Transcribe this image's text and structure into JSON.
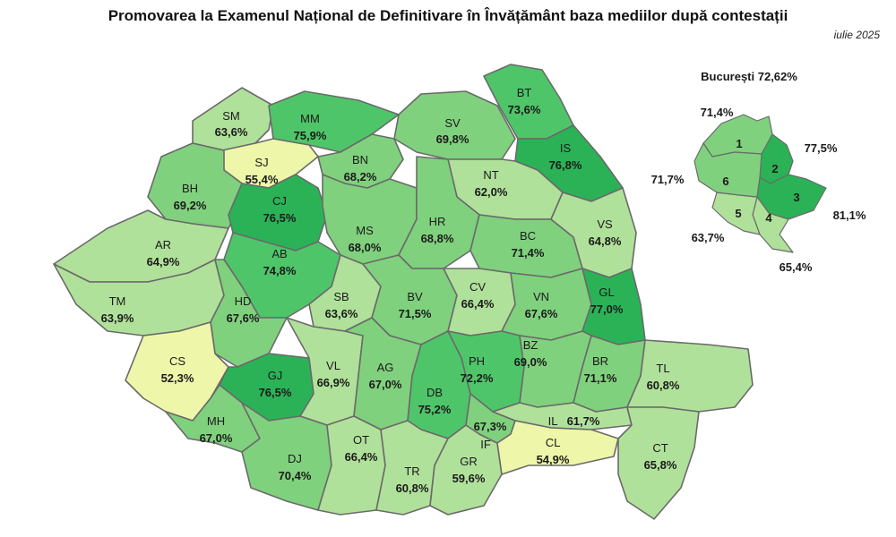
{
  "header": {
    "title": "Promovarea la Examenul Național de Definitivare în Învățământ baza mediilor după contestații",
    "subtitle": "iulie 2025"
  },
  "colors": {
    "very_low": "#eef6a9",
    "low": "#b0e19a",
    "mid": "#80d17e",
    "high": "#4fc56a",
    "top": "#2bb257"
  },
  "counties": [
    {
      "code": "SM",
      "value": "63,6%"
    },
    {
      "code": "MM",
      "value": "75,9%"
    },
    {
      "code": "SV",
      "value": "69,8%"
    },
    {
      "code": "BT",
      "value": "73,6%"
    },
    {
      "code": "SJ",
      "value": "55,4%"
    },
    {
      "code": "BN",
      "value": "68,2%"
    },
    {
      "code": "IS",
      "value": "76,8%"
    },
    {
      "code": "NT",
      "value": "62,0%"
    },
    {
      "code": "BH",
      "value": "69,2%"
    },
    {
      "code": "CJ",
      "value": "76,5%"
    },
    {
      "code": "MS",
      "value": "68,0%"
    },
    {
      "code": "HR",
      "value": "68,8%"
    },
    {
      "code": "BC",
      "value": "71,4%"
    },
    {
      "code": "VS",
      "value": "64,8%"
    },
    {
      "code": "AR",
      "value": "64,9%"
    },
    {
      "code": "AB",
      "value": "74,8%"
    },
    {
      "code": "SB",
      "value": "63,6%"
    },
    {
      "code": "BV",
      "value": "71,5%"
    },
    {
      "code": "CV",
      "value": "66,4%"
    },
    {
      "code": "VN",
      "value": "67,6%"
    },
    {
      "code": "GL",
      "value": "77,0%"
    },
    {
      "code": "TM",
      "value": "63,9%"
    },
    {
      "code": "HD",
      "value": "67,6%"
    },
    {
      "code": "CS",
      "value": "52,3%"
    },
    {
      "code": "GJ",
      "value": "76,5%"
    },
    {
      "code": "VL",
      "value": "66,9%"
    },
    {
      "code": "AG",
      "value": "67,0%"
    },
    {
      "code": "DB",
      "value": "75,2%"
    },
    {
      "code": "PH",
      "value": "72,2%"
    },
    {
      "code": "BZ",
      "value": "69,0%"
    },
    {
      "code": "BR",
      "value": "71,1%"
    },
    {
      "code": "TL",
      "value": "60,8%"
    },
    {
      "code": "MH",
      "value": "67,0%"
    },
    {
      "code": "DJ",
      "value": "70,4%"
    },
    {
      "code": "OT",
      "value": "66,4%"
    },
    {
      "code": "TR",
      "value": "60,8%"
    },
    {
      "code": "GR",
      "value": "59,6%"
    },
    {
      "code": "IF",
      "value": "67,3%"
    },
    {
      "code": "IL",
      "value": "61,7%"
    },
    {
      "code": "CL",
      "value": "54,9%"
    },
    {
      "code": "CT",
      "value": "65,8%"
    }
  ],
  "bucharest": {
    "label": "București 72,62%",
    "sectors": [
      {
        "n": "1",
        "value": "71,4%"
      },
      {
        "n": "2",
        "value": "77,5%"
      },
      {
        "n": "3",
        "value": "81,1%"
      },
      {
        "n": "4",
        "value": "65,4%"
      },
      {
        "n": "5",
        "value": "63,7%"
      },
      {
        "n": "6",
        "value": "71,7%"
      }
    ]
  }
}
